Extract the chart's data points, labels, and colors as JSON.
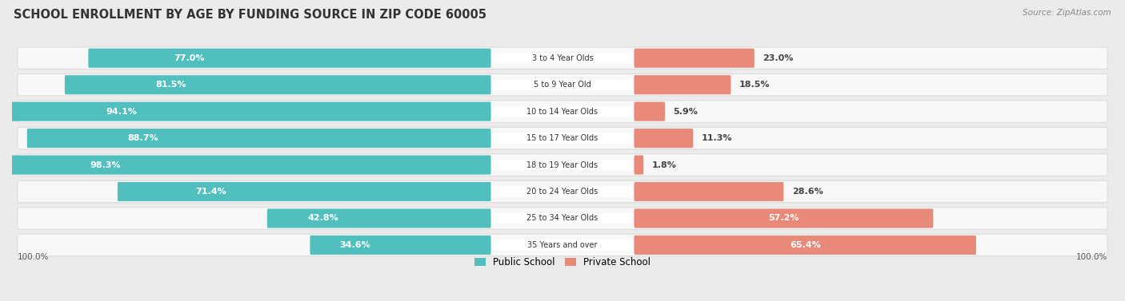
{
  "title": "SCHOOL ENROLLMENT BY AGE BY FUNDING SOURCE IN ZIP CODE 60005",
  "source": "Source: ZipAtlas.com",
  "categories": [
    "3 to 4 Year Olds",
    "5 to 9 Year Old",
    "10 to 14 Year Olds",
    "15 to 17 Year Olds",
    "18 to 19 Year Olds",
    "20 to 24 Year Olds",
    "25 to 34 Year Olds",
    "35 Years and over"
  ],
  "public_values": [
    77.0,
    81.5,
    94.1,
    88.7,
    98.3,
    71.4,
    42.8,
    34.6
  ],
  "private_values": [
    23.0,
    18.5,
    5.9,
    11.3,
    1.8,
    28.6,
    57.2,
    65.4
  ],
  "public_color": "#52BFBF",
  "private_color": "#E8897A",
  "bg_color": "#EBEBEB",
  "row_bg_color": "#F8F8F8",
  "title_fontsize": 10.5,
  "label_fontsize": 8.0,
  "source_fontsize": 7.5,
  "legend_fontsize": 8.5,
  "axis_label_fontsize": 7.5,
  "cat_fontsize": 7.0
}
